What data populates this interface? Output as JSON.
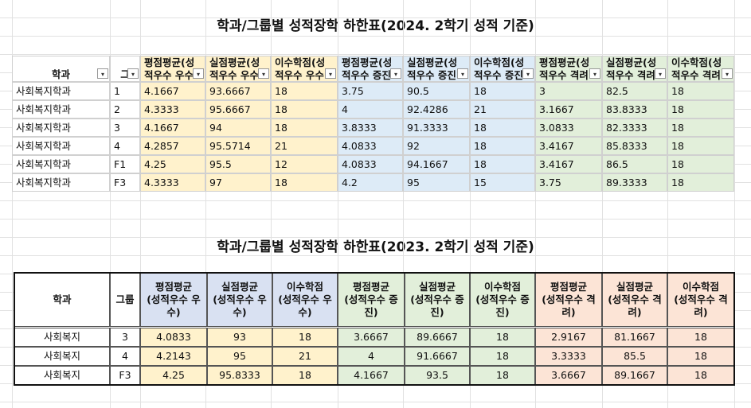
{
  "top": {
    "title": "학과/그룹별 성적장학 하한표(2024. 2학기 성적 기준)",
    "headers": [
      "학과",
      "그",
      [
        "평점평균(성",
        "적우수 우수"
      ],
      [
        "실점평균(성",
        "적우수 우수"
      ],
      [
        "이수학점(성",
        "적우수 우수"
      ],
      [
        "평점평균(성",
        "적우수 증진"
      ],
      [
        "실점평균(성",
        "적우수 증진"
      ],
      [
        "이수학점(성",
        "적우수 증진"
      ],
      [
        "평점평균(성",
        "적우수 격려"
      ],
      [
        "실점평균(성",
        "적우수 격려"
      ],
      [
        "이수학점(성",
        "적우수 격려"
      ]
    ],
    "rows": [
      [
        "사회복지학과",
        "1",
        4.1667,
        93.6667,
        18,
        3.75,
        90.5,
        18,
        3,
        82.5,
        18
      ],
      [
        "사회복지학과",
        "2",
        4.3333,
        95.6667,
        18,
        4,
        92.4286,
        21,
        3.1667,
        83.8333,
        18
      ],
      [
        "사회복지학과",
        "3",
        4.1667,
        94,
        18,
        3.8333,
        91.3333,
        18,
        3.0833,
        82.3333,
        18
      ],
      [
        "사회복지학과",
        "4",
        4.2857,
        95.5714,
        21,
        4.0833,
        92,
        18,
        3.4167,
        85.8333,
        18
      ],
      [
        "사회복지학과",
        "F1",
        4.25,
        95.5,
        12,
        4.0833,
        94.1667,
        18,
        3.4167,
        86.5,
        18
      ],
      [
        "사회복지학과",
        "F3",
        4.3333,
        97,
        18,
        4.2,
        95,
        15,
        3.75,
        89.3333,
        18
      ]
    ]
  },
  "bottom": {
    "title": "학과/그룹별 성적장학 하한표(2023. 2학기 성적 기준)",
    "headers": [
      "학과",
      "그룹",
      [
        "평점평균",
        "(성적우수 우",
        "수)"
      ],
      [
        "실점평균",
        "(성적우수 우",
        "수)"
      ],
      [
        "이수학점",
        "(성적우수 우",
        "수)"
      ],
      [
        "평점평균",
        "(성적우수 증",
        "진)"
      ],
      [
        "실점평균",
        "(성적우수 증",
        "진)"
      ],
      [
        "이수학점",
        "(성적우수 증",
        "진)"
      ],
      [
        "평점평균",
        "(성적우수 격",
        "려)"
      ],
      [
        "실점평균",
        "(성적우수 격",
        "려)"
      ],
      [
        "이수학점",
        "(성적우수 격",
        "려)"
      ]
    ],
    "rows": [
      [
        "사회복지",
        "3",
        4.0833,
        93,
        18,
        3.6667,
        89.6667,
        18,
        2.9167,
        81.1667,
        18
      ],
      [
        "사회복지",
        "4",
        4.2143,
        95,
        21,
        4,
        91.6667,
        18,
        3.3333,
        85.5,
        18
      ],
      [
        "사회복지",
        "F3",
        4.25,
        95.8333,
        18,
        4.1667,
        93.5,
        18,
        3.6667,
        89.1667,
        18
      ]
    ]
  }
}
